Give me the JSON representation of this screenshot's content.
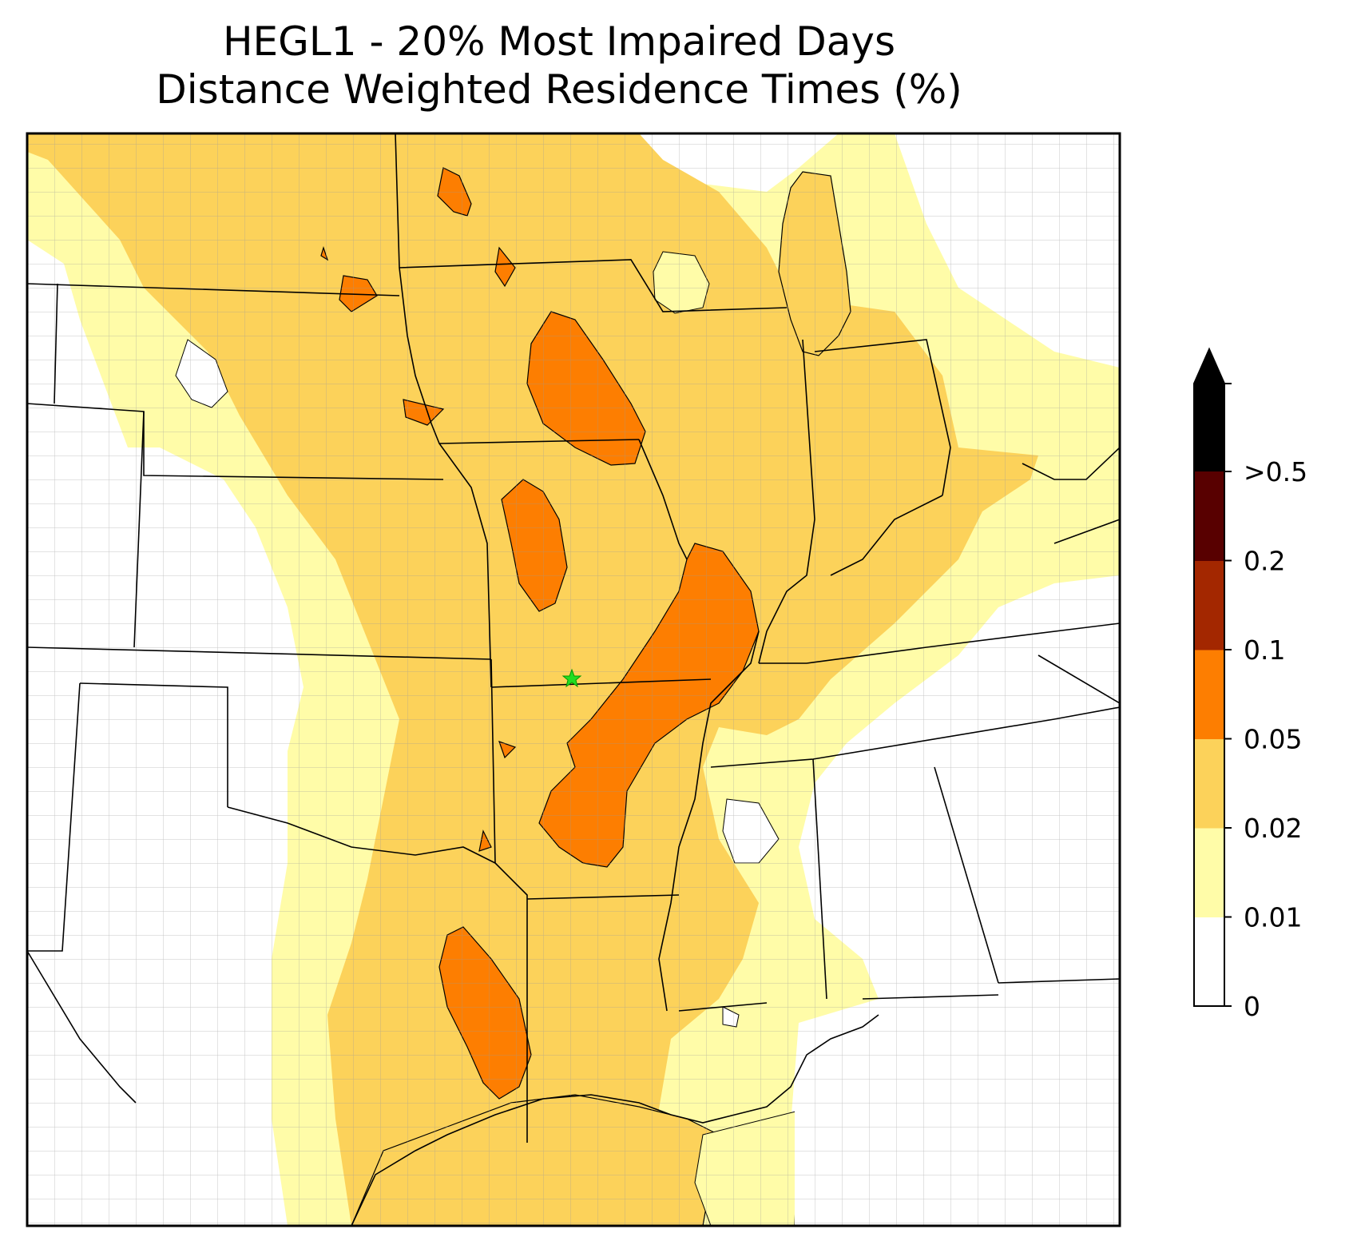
{
  "title": {
    "line1": "HEGL1 - 20% Most Impaired Days",
    "line2": "Distance Weighted Residence Times (%)"
  },
  "colorbar": {
    "extend": "max",
    "levels": [
      {
        "label": "0",
        "color": "#ffffff"
      },
      {
        "label": "0.01",
        "color": "#fffca8"
      },
      {
        "label": "0.02",
        "color": "#fcd25a"
      },
      {
        "label": "0.05",
        "color": "#fd7e01"
      },
      {
        "label": "0.1",
        "color": "#a32700"
      },
      {
        "label": "0.2",
        "color": "#580000"
      },
      {
        "label": ">0.5",
        "color": "#000000"
      }
    ],
    "extend_color": "#000000"
  },
  "site_marker": {
    "color": "#22dd22",
    "icon": "star-icon"
  },
  "colors": {
    "ocean": "#ffffff",
    "state_border": "#000000",
    "county_border": "#9a9a9a",
    "zone_0": "#ffffff",
    "zone_1": "#fffca8",
    "zone_2": "#fcd25a",
    "zone_3": "#fd7e01"
  }
}
